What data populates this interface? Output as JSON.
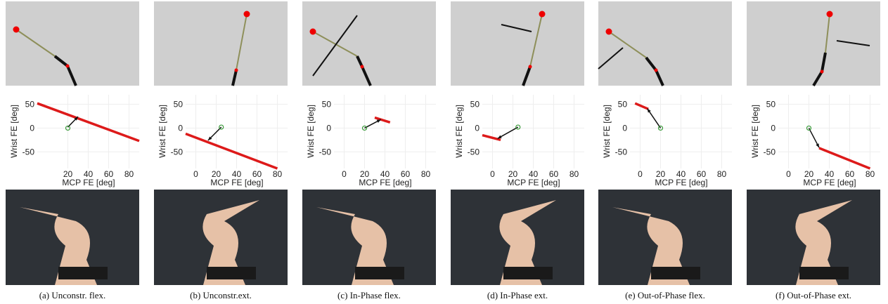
{
  "chart_data": [
    {
      "type": "line",
      "xlabel": "MCP FE [deg]",
      "ylabel": "Wrist FE [deg]",
      "xlim": [
        -10,
        90
      ],
      "ylim": [
        -85,
        70
      ],
      "xticks": [
        20,
        40,
        60,
        80
      ],
      "yticks": [
        -50,
        0,
        50
      ],
      "x": [
        -10,
        90
      ],
      "values": [
        52,
        -27
      ],
      "color": "#dd1a1a",
      "target": [
        20,
        0
      ],
      "arrow": {
        "from": [
          20,
          2
        ],
        "to": [
          30,
          24
        ]
      }
    },
    {
      "type": "line",
      "xlabel": "MCP FE [deg]",
      "ylabel": "Wrist FE [deg]",
      "xlim": [
        -10,
        90
      ],
      "ylim": [
        -85,
        70
      ],
      "xticks": [
        0,
        20,
        40,
        60,
        80
      ],
      "yticks": [
        -50,
        0,
        50
      ],
      "x": [
        -10,
        80
      ],
      "values": [
        -12,
        -85
      ],
      "color": "#dd1a1a",
      "target": [
        25,
        2
      ],
      "arrow": {
        "from": [
          25,
          2
        ],
        "to": [
          12,
          -26
        ]
      }
    },
    {
      "type": "line",
      "xlabel": "MCP FE [deg]",
      "ylabel": "Wrist FE [deg]",
      "xlim": [
        -10,
        90
      ],
      "ylim": [
        -85,
        70
      ],
      "xticks": [
        0,
        20,
        40,
        60,
        80
      ],
      "yticks": [
        -50,
        0,
        50
      ],
      "x": [
        30,
        45
      ],
      "values": [
        22,
        12
      ],
      "color": "#dd1a1a",
      "target": [
        20,
        0
      ],
      "arrow": {
        "from": [
          20,
          0
        ],
        "to": [
          36,
          18
        ]
      }
    },
    {
      "type": "line",
      "xlabel": "MCP FE [deg]",
      "ylabel": "Wrist FE [deg]",
      "xlim": [
        -10,
        90
      ],
      "ylim": [
        -85,
        70
      ],
      "xticks": [
        0,
        20,
        40,
        60,
        80
      ],
      "yticks": [
        -50,
        0,
        50
      ],
      "x": [
        -10,
        8
      ],
      "values": [
        -15,
        -25
      ],
      "color": "#dd1a1a",
      "target": [
        25,
        2
      ],
      "arrow": {
        "from": [
          25,
          2
        ],
        "to": [
          5,
          -22
        ]
      }
    },
    {
      "type": "line",
      "xlabel": "MCP FE [deg]",
      "ylabel": "Wrist FE [deg]",
      "xlim": [
        -10,
        90
      ],
      "ylim": [
        -85,
        70
      ],
      "xticks": [
        0,
        20,
        40,
        60,
        80
      ],
      "yticks": [
        -50,
        0,
        50
      ],
      "x": [
        -5,
        8
      ],
      "values": [
        52,
        40
      ],
      "color": "#dd1a1a",
      "target": [
        20,
        0
      ],
      "arrow": {
        "from": [
          20,
          0
        ],
        "to": [
          7,
          41
        ]
      }
    },
    {
      "type": "line",
      "xlabel": "MCP FE [deg]",
      "ylabel": "Wrist FE [deg]",
      "xlim": [
        -10,
        90
      ],
      "ylim": [
        -85,
        70
      ],
      "xticks": [
        0,
        20,
        40,
        60,
        80
      ],
      "yticks": [
        -50,
        0,
        50
      ],
      "x": [
        30,
        80
      ],
      "values": [
        -42,
        -85
      ],
      "color": "#dd1a1a",
      "target": [
        20,
        0
      ],
      "arrow": {
        "from": [
          20,
          0
        ],
        "to": [
          30,
          -41
        ]
      }
    }
  ],
  "captions": [
    "(a) Unconstr. flex.",
    "(b) Unconstr.ext.",
    "(c) In-Phase flex.",
    "(d) In-Phase ext.",
    "(e) Out-of-Phase flex.",
    "(f) Out-of-Phase ext."
  ]
}
